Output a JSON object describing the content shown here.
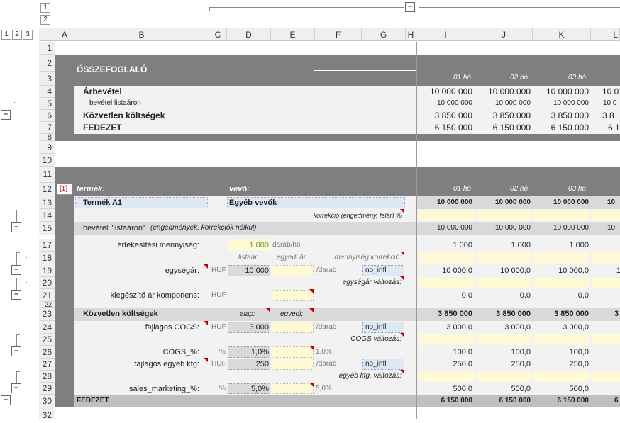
{
  "outline": {
    "levels": [
      "1",
      "2",
      "3"
    ],
    "col_levels": [
      "1",
      "2"
    ]
  },
  "columns": [
    "A",
    "B",
    "C",
    "D",
    "E",
    "F",
    "G",
    "H",
    "I",
    "J",
    "K",
    "L"
  ],
  "rows": [
    "1",
    "2",
    "3",
    "4",
    "5",
    "6",
    "7",
    "8",
    "9",
    "10",
    "11",
    "12",
    "13",
    "14",
    "15",
    "17",
    "18",
    "19",
    "20",
    "21",
    "22",
    "23",
    "24",
    "25",
    "26",
    "27",
    "28",
    "29",
    "30",
    "32"
  ],
  "summary": {
    "title": "ÖSSZEFOGLALÓ",
    "months": [
      "01 hó",
      "02 hó",
      "03 hó"
    ],
    "revenue_label": "Árbevétel",
    "revenue": [
      "10 000 000",
      "10 000 000",
      "10 000 000",
      "10 0"
    ],
    "list_label": "bevétel listaáron",
    "list": [
      "10 000 000",
      "10 000 000",
      "10 000 000",
      "10 0"
    ],
    "direct_label": "Közvetlen költségek",
    "direct": [
      "3 850 000",
      "3 850 000",
      "3 850 000",
      "3 8"
    ],
    "margin_label": "FEDEZET",
    "margin": [
      "6 150 000",
      "6 150 000",
      "6 150 000",
      "6 1"
    ]
  },
  "detail": {
    "index": "[1]",
    "product_hdr": "termék:",
    "customer_hdr": "vevő:",
    "months": [
      "01 hó",
      "02 hó",
      "03 hó"
    ],
    "product": "Termék A1",
    "customer": "Egyéb vevők",
    "r13": [
      "10 000 000",
      "10 000 000",
      "10 000 000",
      "10"
    ],
    "correction": "korrekció (engedmény, felár) %",
    "list_label": "bevétel \"listaáron\"",
    "list_note": "(engedmények, korrekciók nélkül)",
    "r15": [
      "10 000 000",
      "10 000 000",
      "10 000 000",
      "10"
    ],
    "qty_label": "értékesítési mennyiség:",
    "qty": "1 000",
    "qty_unit": "darab/hó",
    "r17": [
      "1 000",
      "1 000",
      "1 000"
    ],
    "h_list": "listaár",
    "h_custom": "egyedi ár",
    "h_qtycorr": "mennyiség korrekció:",
    "price_label": "egységár:",
    "huf": "HUF",
    "price": "10 000",
    "per": "/darab",
    "noinfl": "no_infl",
    "r19": [
      "10 000,0",
      "10 000,0",
      "10 000,0",
      "1"
    ],
    "price_change": "egységár változás:",
    "extra_label": "kiegészítő ár komponens:",
    "r21": [
      "0,0",
      "0,0",
      "0,0"
    ],
    "cost_label": "Közvetlen költségek",
    "h_base": "alap:",
    "h_cust": "egyedi:",
    "r23": [
      "3 850 000",
      "3 850 000",
      "3 850 000",
      "3"
    ],
    "cogs_label": "fajlagos COGS:",
    "cogs": "3 000",
    "r24": [
      "3 000,0",
      "3 000,0",
      "3 000,0"
    ],
    "cogs_change": "COGS változás:",
    "cogsp_label": "COGS_%:",
    "pct": "%",
    "cogsp": "1,0%",
    "cogsp2": "1,0%",
    "r26": [
      "100,0",
      "100,0",
      "100,0"
    ],
    "other_label": "fajlagos egyéb ktg:",
    "other": "250",
    "r27": [
      "250,0",
      "250,0",
      "250,0"
    ],
    "other_change": "egyéb ktg. változás:",
    "sm_label": "sales_marketing_%:",
    "sm": "5,0%",
    "sm2": "5,0%",
    "r29": [
      "500,0",
      "500,0",
      "500,0"
    ],
    "margin_label": "FEDEZET",
    "r30": [
      "6 150 000",
      "6 150 000",
      "6 150 000",
      "6"
    ]
  },
  "colors": {
    "dark": "#7f7f7f",
    "light": "#f2f2f2",
    "mid": "#d9d9d9",
    "yellow": "#fff9d6",
    "blue": "#dde8f4",
    "red": "#c00000"
  }
}
